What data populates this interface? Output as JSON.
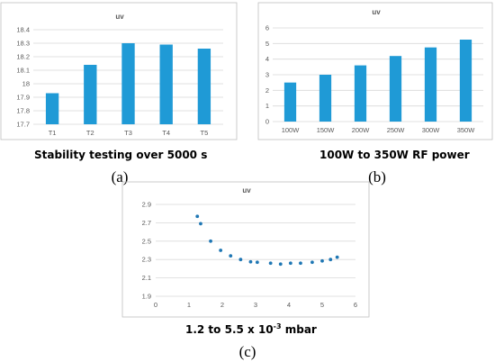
{
  "chart_data": [
    {
      "id": "a",
      "type": "bar",
      "title": "uv",
      "caption": "Stability testing over 5000 s",
      "panel_label": "(a)",
      "categories": [
        "T1",
        "T2",
        "T3",
        "T4",
        "T5"
      ],
      "values": [
        17.93,
        18.14,
        18.3,
        18.29,
        18.26
      ],
      "ylim": [
        17.7,
        18.4
      ],
      "yticks": [
        "17.7",
        "17.8",
        "17.9",
        "18",
        "18.1",
        "18.2",
        "18.3",
        "18.4"
      ],
      "grid": true,
      "bar_color": "#1f9ad6"
    },
    {
      "id": "b",
      "type": "bar",
      "title": "uv",
      "caption": "100W to 350W RF power",
      "panel_label": "(b)",
      "categories": [
        "100W",
        "150W",
        "200W",
        "250W",
        "300W",
        "350W"
      ],
      "values": [
        2.5,
        3.0,
        3.6,
        4.2,
        4.75,
        5.25
      ],
      "ylim": [
        0,
        6
      ],
      "yticks": [
        "0",
        "1",
        "2",
        "3",
        "4",
        "5",
        "6"
      ],
      "grid": true,
      "bar_color": "#1f9ad6"
    },
    {
      "id": "c",
      "type": "scatter",
      "title": "uv",
      "caption_main": "1.2 to 5.5 x 10",
      "caption_sup": "-3",
      "caption_tail": " mbar",
      "panel_label": "(c)",
      "points": [
        [
          1.25,
          2.77
        ],
        [
          1.35,
          2.69
        ],
        [
          1.65,
          2.5
        ],
        [
          1.95,
          2.4
        ],
        [
          2.25,
          2.34
        ],
        [
          2.55,
          2.3
        ],
        [
          2.85,
          2.275
        ],
        [
          3.05,
          2.27
        ],
        [
          3.45,
          2.26
        ],
        [
          3.75,
          2.25
        ],
        [
          4.05,
          2.26
        ],
        [
          4.35,
          2.26
        ],
        [
          4.7,
          2.27
        ],
        [
          5.0,
          2.285
        ],
        [
          5.25,
          2.3
        ],
        [
          5.45,
          2.325
        ]
      ],
      "xlim": [
        0,
        6
      ],
      "ylim": [
        1.9,
        2.9
      ],
      "xticks": [
        "0",
        "1",
        "2",
        "3",
        "4",
        "5",
        "6"
      ],
      "yticks": [
        "1.9",
        "2.1",
        "2.3",
        "2.5",
        "2.7",
        "2.9"
      ],
      "grid": true,
      "point_color": "#1f77b4"
    }
  ]
}
